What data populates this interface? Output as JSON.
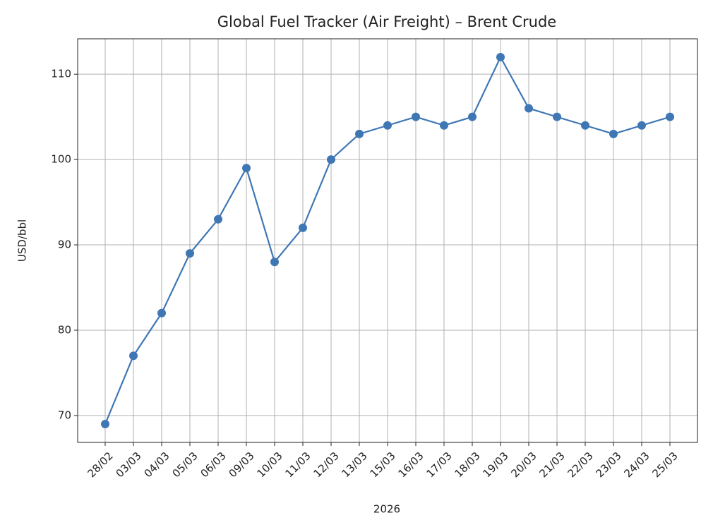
{
  "chart_data": {
    "type": "line",
    "title": "Global Fuel Tracker (Air Freight) – Brent Crude",
    "x_label": "2026",
    "y_label": "USD/bbl",
    "categories": [
      "28/02",
      "03/03",
      "04/03",
      "05/03",
      "06/03",
      "09/03",
      "10/03",
      "11/03",
      "12/03",
      "13/03",
      "15/03",
      "16/03",
      "17/03",
      "18/03",
      "19/03",
      "20/03",
      "21/03",
      "22/03",
      "23/03",
      "24/03",
      "25/03"
    ],
    "series": [
      {
        "name": "Brent Crude",
        "color": "#3f77b4",
        "values": [
          69,
          77,
          82,
          89,
          93,
          99,
          88,
          92,
          100,
          103,
          104,
          105,
          104,
          105,
          112,
          106,
          105,
          104,
          103,
          104,
          105
        ]
      }
    ],
    "ylim": [
      66.85,
      114.15
    ],
    "yticks": [
      70,
      80,
      90,
      100,
      110
    ],
    "grid": true
  }
}
